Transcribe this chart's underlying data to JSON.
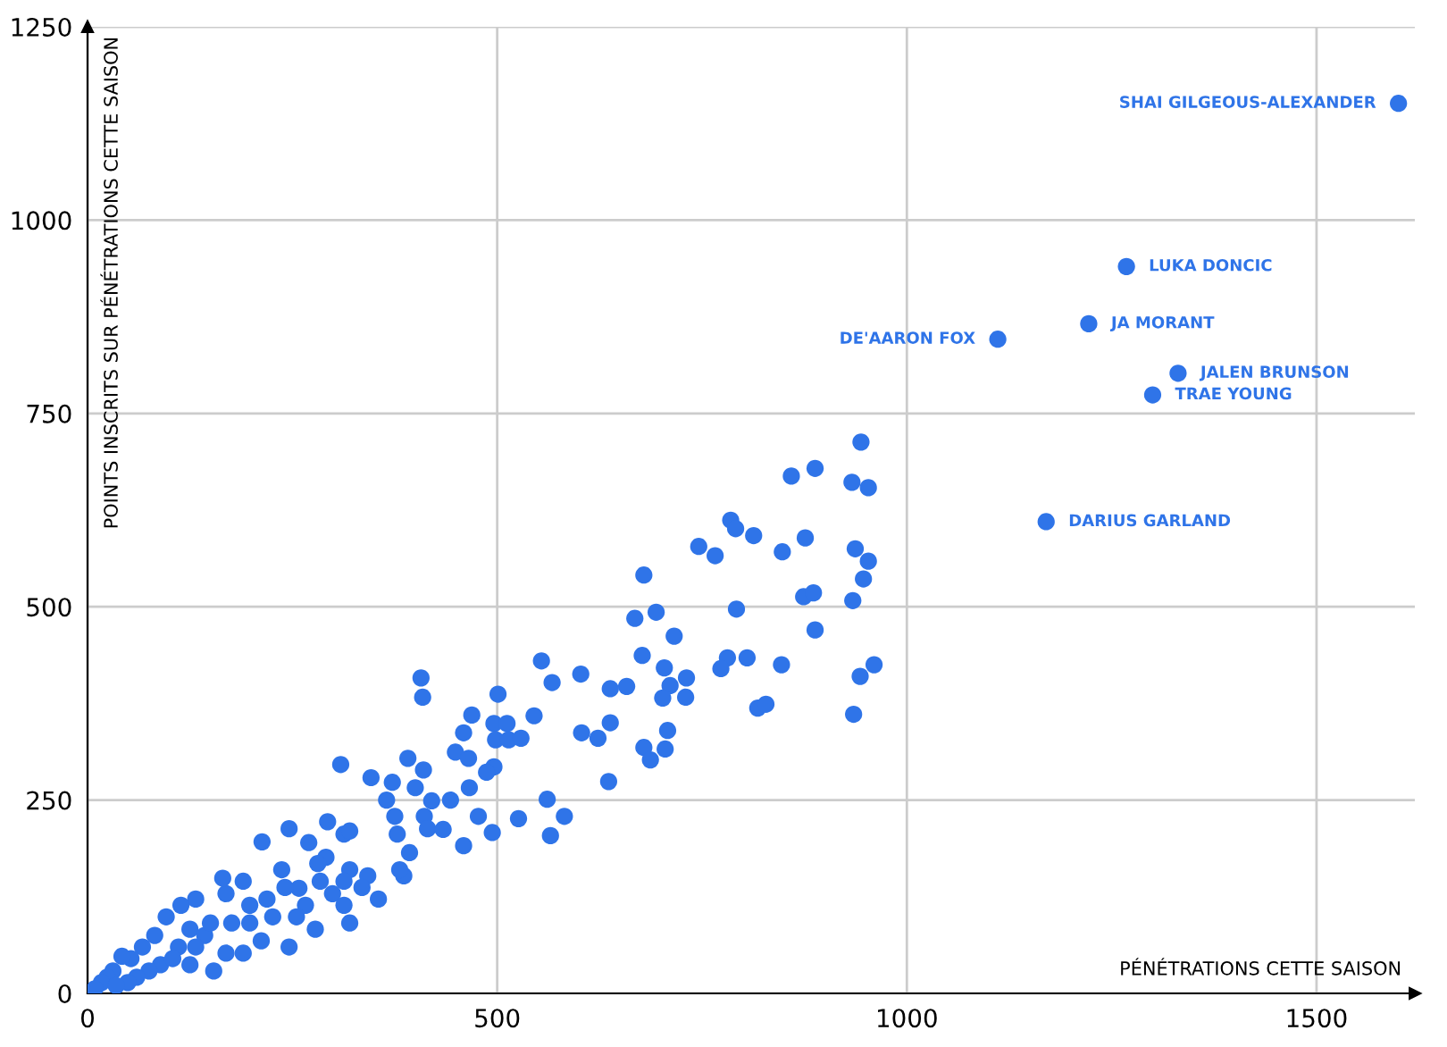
{
  "chart_data": {
    "type": "scatter",
    "xlabel": "PÉNÉTRATIONS CETTE SAISON",
    "ylabel": "POINTS INSCRITS SUR PÉNÉTRATIONS CETTE SAISON",
    "xlim": [
      0,
      1620
    ],
    "ylim": [
      0,
      1250
    ],
    "xticks": [
      0,
      500,
      1000,
      1500
    ],
    "yticks": [
      0,
      250,
      500,
      750,
      1000,
      1250
    ],
    "grid": true,
    "marker": "circle",
    "series": [
      {
        "color": "#2f74e8",
        "x": [
          1600,
          1268,
          1222,
          1111,
          1331,
          1300,
          1170,
          944,
          859,
          888,
          933,
          953,
          785,
          791,
          813,
          746,
          766,
          848,
          876,
          937,
          953,
          947,
          874,
          886,
          934,
          679,
          668,
          694,
          716,
          792,
          888,
          677,
          704,
          781,
          773,
          805,
          847,
          960,
          943,
          935,
          818,
          828,
          731,
          711,
          702,
          730,
          708,
          679,
          705,
          687,
          602,
          638,
          658,
          567,
          554,
          501,
          545,
          603,
          623,
          638,
          636,
          496,
          512,
          498,
          514,
          529,
          496,
          487,
          561,
          582,
          526,
          494,
          565,
          407,
          409,
          469,
          459,
          449,
          465,
          466,
          443,
          477,
          309,
          346,
          372,
          391,
          410,
          400,
          365,
          375,
          420,
          411,
          415,
          434,
          378,
          393,
          459,
          355,
          386,
          381,
          342,
          320,
          335,
          299,
          313,
          291,
          313,
          270,
          281,
          278,
          293,
          320,
          246,
          213,
          237,
          258,
          246,
          212,
          226,
          198,
          190,
          169,
          165,
          154,
          169,
          190,
          132,
          114,
          96,
          125,
          111,
          82,
          67,
          53,
          42,
          31,
          24,
          17,
          9,
          143,
          150,
          176,
          198,
          219,
          132,
          89,
          75,
          60,
          49,
          35,
          104,
          125,
          266,
          284,
          313,
          241,
          255,
          320
        ],
        "values": [
          1151,
          940,
          866,
          846,
          802,
          774,
          610,
          713,
          669,
          679,
          661,
          654,
          612,
          601,
          592,
          578,
          566,
          571,
          589,
          575,
          559,
          536,
          513,
          518,
          508,
          541,
          485,
          493,
          462,
          497,
          470,
          437,
          421,
          434,
          420,
          434,
          425,
          425,
          410,
          361,
          369,
          374,
          408,
          398,
          382,
          383,
          340,
          318,
          316,
          302,
          413,
          394,
          397,
          402,
          430,
          387,
          359,
          337,
          330,
          350,
          274,
          349,
          349,
          328,
          328,
          330,
          293,
          286,
          251,
          229,
          226,
          208,
          204,
          408,
          383,
          360,
          337,
          312,
          304,
          266,
          250,
          229,
          296,
          279,
          273,
          304,
          289,
          266,
          250,
          229,
          249,
          229,
          213,
          212,
          206,
          182,
          191,
          122,
          152,
          160,
          152,
          160,
          137,
          129,
          114,
          176,
          206,
          195,
          168,
          83,
          222,
          210,
          213,
          196,
          160,
          136,
          60,
          68,
          99,
          114,
          145,
          129,
          149,
          29,
          52,
          52,
          122,
          114,
          99,
          83,
          60,
          75,
          60,
          45,
          48,
          29,
          21,
          14,
          6,
          75,
          91,
          91,
          91,
          122,
          60,
          37,
          29,
          21,
          14,
          10,
          45,
          37,
          114,
          145,
          145,
          137,
          99,
          91
        ]
      }
    ],
    "annotations": [
      {
        "text": "SHAI GILGEOUS-ALEXANDER",
        "x": 1600,
        "y": 1151
      },
      {
        "text": "LUKA DONCIC",
        "x": 1268,
        "y": 940
      },
      {
        "text": "JA MORANT",
        "x": 1222,
        "y": 866
      },
      {
        "text": "DE'AARON FOX",
        "x": 1111,
        "y": 846
      },
      {
        "text": "JALEN BRUNSON",
        "x": 1331,
        "y": 802
      },
      {
        "text": "TRAE YOUNG",
        "x": 1300,
        "y": 774
      },
      {
        "text": "DARIUS GARLAND",
        "x": 1170,
        "y": 610
      }
    ]
  }
}
